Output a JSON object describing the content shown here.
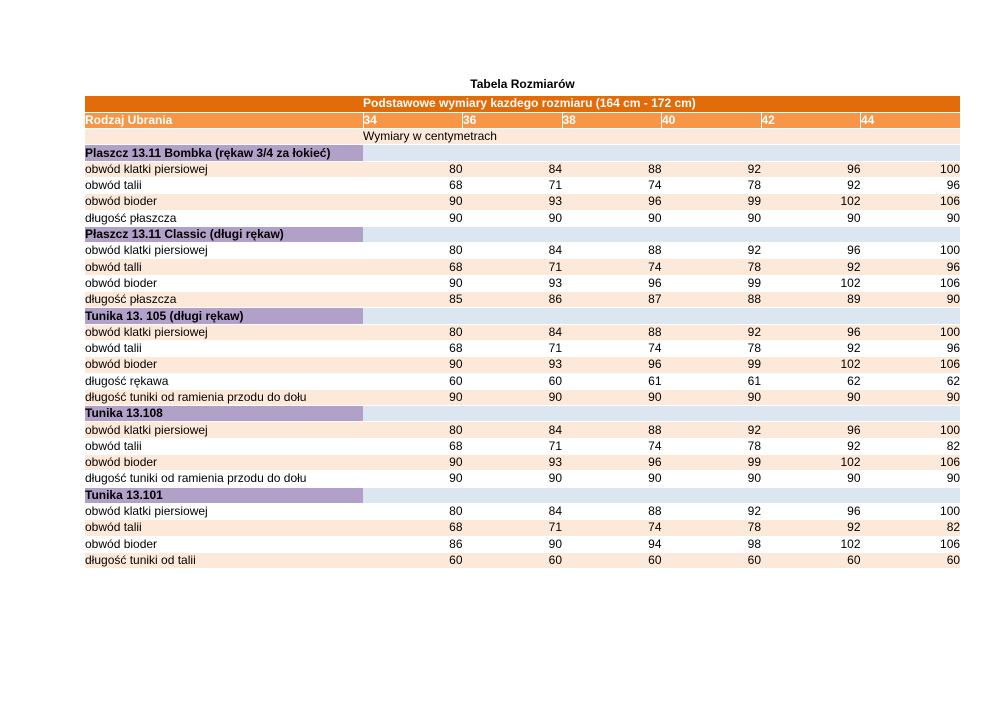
{
  "title": "Tabela Rozmiarów",
  "table": {
    "banner": "Podstawowe wymiary kazdego rozmiaru (164 cm - 172 cm)",
    "first_column_header": "Rodzaj Ubrania",
    "size_headers": [
      "34",
      "36",
      "38",
      "40",
      "42",
      "44"
    ],
    "unit_note": "Wymiary w centymetrach",
    "colors": {
      "banner_bg": "#e26b0a",
      "column_header_bg": "#f79646",
      "header_text": "#ffffff",
      "row_peach_bg": "#fde9d9",
      "row_white_bg": "#ffffff",
      "section_left_bg": "#b1a0c7",
      "section_right_bg": "#dce6f1",
      "body_text": "#000000"
    },
    "sections": [
      {
        "name": "Plaszcz 13.11 Bombka (rękaw 3/4 za łokieć)",
        "rows": [
          {
            "label": "obwód klatki piersiowej",
            "band": "peach",
            "values": [
              80,
              84,
              88,
              92,
              96,
              100
            ]
          },
          {
            "label": "obwód talii",
            "band": "white",
            "values": [
              68,
              71,
              74,
              78,
              92,
              96
            ]
          },
          {
            "label": "obwód bioder",
            "band": "peach",
            "values": [
              90,
              93,
              96,
              99,
              102,
              106
            ]
          },
          {
            "label": "długość płaszcza",
            "band": "white",
            "values": [
              90,
              90,
              90,
              90,
              90,
              90
            ]
          }
        ]
      },
      {
        "name": "Płaszcz 13.11 Classic (długi rękaw)",
        "rows": [
          {
            "label": "obwód klatki piersiowej",
            "band": "white",
            "values": [
              80,
              84,
              88,
              92,
              96,
              100
            ]
          },
          {
            "label": "obwód talli",
            "band": "peach",
            "values": [
              68,
              71,
              74,
              78,
              92,
              96
            ]
          },
          {
            "label": "obwód bioder",
            "band": "white",
            "values": [
              90,
              93,
              96,
              99,
              102,
              106
            ]
          },
          {
            "label": "długość płaszcza",
            "band": "peach",
            "values": [
              85,
              86,
              87,
              88,
              89,
              90
            ]
          }
        ]
      },
      {
        "name": "Tunika 13. 105 (długi rękaw)",
        "rows": [
          {
            "label": "obwód klatki piersiowej",
            "band": "peach",
            "values": [
              80,
              84,
              88,
              92,
              96,
              100
            ]
          },
          {
            "label": "obwód talii",
            "band": "white",
            "values": [
              68,
              71,
              74,
              78,
              92,
              96
            ]
          },
          {
            "label": "obwód bioder",
            "band": "peach",
            "values": [
              90,
              93,
              96,
              99,
              102,
              106
            ]
          },
          {
            "label": "długość rękawa",
            "band": "white",
            "values": [
              60,
              60,
              61,
              61,
              62,
              62
            ]
          },
          {
            "label": "długość tuniki od ramienia przodu do dołu",
            "band": "peach",
            "values": [
              90,
              90,
              90,
              90,
              90,
              90
            ]
          }
        ]
      },
      {
        "name": "Tunika 13.108",
        "rows": [
          {
            "label": "obwód klatki piersiowej",
            "band": "peach",
            "values": [
              80,
              84,
              88,
              92,
              96,
              100
            ]
          },
          {
            "label": "obwód talii",
            "band": "white",
            "values": [
              68,
              71,
              74,
              78,
              92,
              82
            ]
          },
          {
            "label": "obwód bioder",
            "band": "peach",
            "values": [
              90,
              93,
              96,
              99,
              102,
              106
            ]
          },
          {
            "label": "długość tuniki od ramienia przodu do dołu",
            "band": "white",
            "values": [
              90,
              90,
              90,
              90,
              90,
              90
            ]
          }
        ]
      },
      {
        "name": "Tunika 13.101",
        "rows": [
          {
            "label": "obwód klatki piersiowej",
            "band": "white",
            "values": [
              80,
              84,
              88,
              92,
              96,
              100
            ]
          },
          {
            "label": "obwód talii",
            "band": "peach",
            "values": [
              68,
              71,
              74,
              78,
              92,
              82
            ]
          },
          {
            "label": "obwód bioder",
            "band": "white",
            "values": [
              86,
              90,
              94,
              98,
              102,
              106
            ]
          },
          {
            "label": "długość tuniki od talii",
            "band": "peach",
            "values": [
              60,
              60,
              60,
              60,
              60,
              60
            ]
          }
        ]
      }
    ]
  }
}
